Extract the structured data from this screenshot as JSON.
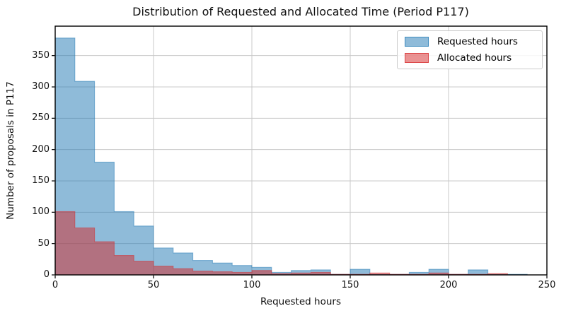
{
  "chart_data": {
    "type": "bar",
    "subtype": "histogram",
    "title": "Distribution of Requested and Allocated Time (Period P117)",
    "xlabel": "Requested hours",
    "ylabel": "Number of proposals in P117",
    "bin_width": 10,
    "bin_edges": [
      0,
      10,
      20,
      30,
      40,
      50,
      60,
      70,
      80,
      90,
      100,
      110,
      120,
      130,
      140,
      150,
      160,
      170,
      180,
      190,
      200,
      210,
      220,
      230,
      240,
      250
    ],
    "series": [
      {
        "name": "Requested hours",
        "color": "#1f77b4",
        "alpha": 0.5,
        "values": [
          378,
          309,
          180,
          101,
          78,
          43,
          35,
          23,
          19,
          15,
          12,
          4,
          7,
          8,
          1,
          9,
          1,
          1,
          4,
          9,
          1,
          8,
          1,
          1,
          0
        ]
      },
      {
        "name": "Allocated hours",
        "color": "#d62728",
        "alpha": 0.5,
        "values": [
          101,
          75,
          53,
          31,
          22,
          14,
          10,
          6,
          5,
          4,
          7,
          2,
          3,
          4,
          1,
          1,
          3,
          1,
          1,
          3,
          1,
          1,
          2,
          0,
          0
        ]
      }
    ],
    "xlim": [
      0,
      250
    ],
    "ylim": [
      0,
      397
    ],
    "x_ticks": [
      0,
      50,
      100,
      150,
      200,
      250
    ],
    "y_ticks": [
      0,
      50,
      100,
      150,
      200,
      250,
      300,
      350
    ],
    "grid": true,
    "grid_color": "#c9c9c9",
    "spine_color": "#000000",
    "legend_position": "upper right"
  }
}
